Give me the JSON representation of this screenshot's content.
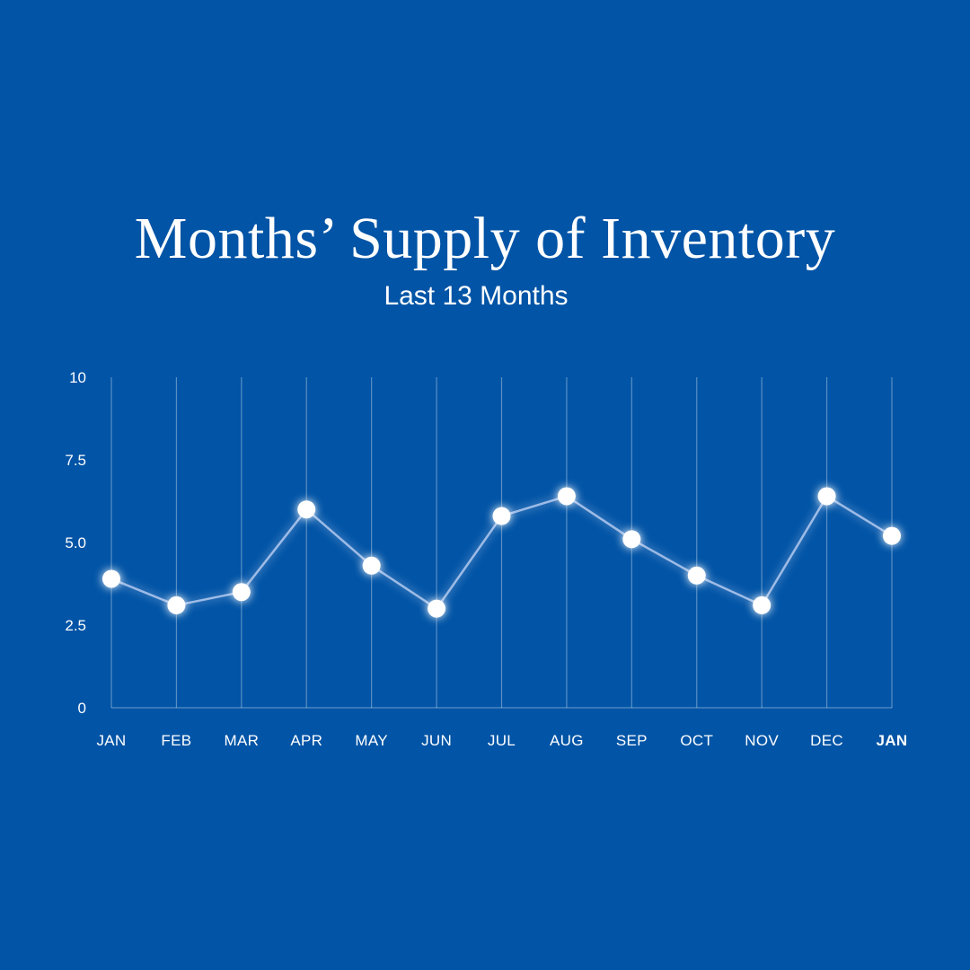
{
  "chart_data": {
    "type": "line",
    "title": "Months’ Supply of Inventory",
    "subtitle": "Last 13 Months",
    "xlabel": "",
    "ylabel": "",
    "categories": [
      "JAN",
      "FEB",
      "MAR",
      "APR",
      "MAY",
      "JUN",
      "JUL",
      "AUG",
      "SEP",
      "OCT",
      "NOV",
      "DEC",
      "JAN"
    ],
    "series": [
      {
        "values": [
          3.9,
          3.1,
          3.5,
          6.0,
          4.3,
          3.0,
          5.8,
          6.4,
          5.1,
          4.0,
          3.1,
          6.4,
          5.2
        ]
      }
    ],
    "yticks": [
      "0",
      "2.5",
      "5.0",
      "7.5",
      "10"
    ],
    "ylim": [
      0,
      10
    ],
    "grid": "vertical",
    "colors": {
      "background": "#0154a6",
      "line": "#9dbbe6",
      "point": "#ffffff",
      "text": "#ffffff"
    }
  }
}
